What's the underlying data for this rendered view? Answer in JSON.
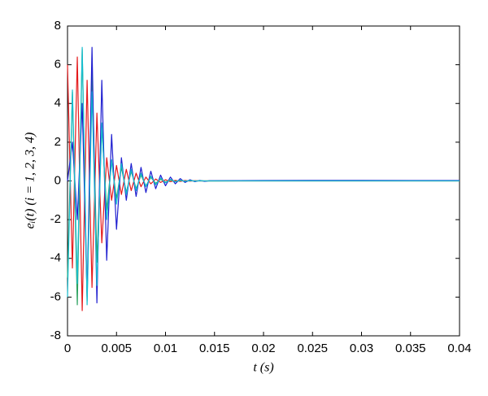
{
  "chart_data": {
    "type": "line",
    "x_label": "t (s)",
    "y_label": "eᵢ(t) (i = 1, 2, 3, 4)",
    "x": [
      0,
      0.0005,
      0.001,
      0.0015,
      0.002,
      0.0025,
      0.003,
      0.0035,
      0.004,
      0.0045,
      0.005,
      0.0055,
      0.006,
      0.0065,
      0.007,
      0.0075,
      0.008,
      0.0085,
      0.009,
      0.0095,
      0.01,
      0.0105,
      0.011,
      0.0115,
      0.012,
      0.0125,
      0.013,
      0.0135,
      0.014,
      0.0145,
      0.015,
      0.02,
      0.025,
      0.03,
      0.035,
      0.04
    ],
    "series": [
      {
        "color": "#e41a1c",
        "values": [
          6,
          -4.5,
          6.4,
          -6.7,
          5.2,
          -5.5,
          3.5,
          -3.2,
          1.2,
          -1.0,
          0.8,
          -0.7,
          0.6,
          -0.5,
          0.4,
          -0.3,
          0.2,
          -0.15,
          0.1,
          -0.08,
          0.06,
          -0.04,
          0.03,
          -0.02,
          0.02,
          -0.01,
          0.01,
          0,
          0,
          0,
          0,
          0,
          0,
          0,
          0,
          0
        ]
      },
      {
        "color": "#2ca25f",
        "values": [
          -5,
          4.6,
          -6.4,
          6.8,
          -6.2,
          5.8,
          -4.2,
          2.8,
          -1.5,
          1.0,
          -0.9,
          0.7,
          -0.6,
          0.5,
          -0.4,
          0.3,
          -0.25,
          0.18,
          -0.12,
          0.08,
          -0.06,
          0.04,
          -0.03,
          0.02,
          -0.01,
          0.01,
          0,
          0,
          0,
          0,
          0,
          0.01,
          0.01,
          0.01,
          0.01,
          0.01
        ]
      },
      {
        "color": "#1f1fd0",
        "values": [
          0,
          2,
          -2,
          4,
          -6,
          6.9,
          -6.3,
          5.2,
          -4.1,
          2.4,
          -2.5,
          1.2,
          -1.0,
          0.9,
          -0.8,
          0.7,
          -0.6,
          0.5,
          -0.4,
          0.3,
          -0.25,
          0.2,
          -0.15,
          0.12,
          -0.08,
          0.06,
          -0.04,
          0.03,
          -0.02,
          0.01,
          0.01,
          0.02,
          0.03,
          0.03,
          0.02,
          0.02
        ]
      },
      {
        "color": "#17becf",
        "values": [
          -6,
          4.7,
          -5.3,
          6.9,
          -6.4,
          4.6,
          -5.4,
          3.0,
          -2.0,
          1.1,
          -1.2,
          0.9,
          -0.7,
          0.6,
          -0.5,
          0.4,
          -0.3,
          0.25,
          -0.2,
          0.15,
          -0.1,
          0.08,
          -0.05,
          0.04,
          -0.02,
          0.02,
          -0.01,
          0.01,
          0,
          0,
          0,
          0,
          0,
          0,
          0,
          0
        ]
      }
    ],
    "xlim": [
      0,
      0.04
    ],
    "xticks": [
      0,
      0.005,
      0.01,
      0.015,
      0.02,
      0.025,
      0.03,
      0.035,
      0.04
    ],
    "ylim": [
      -8,
      8
    ],
    "yticks": [
      -8,
      -6,
      -4,
      -2,
      0,
      2,
      4,
      6,
      8
    ]
  }
}
